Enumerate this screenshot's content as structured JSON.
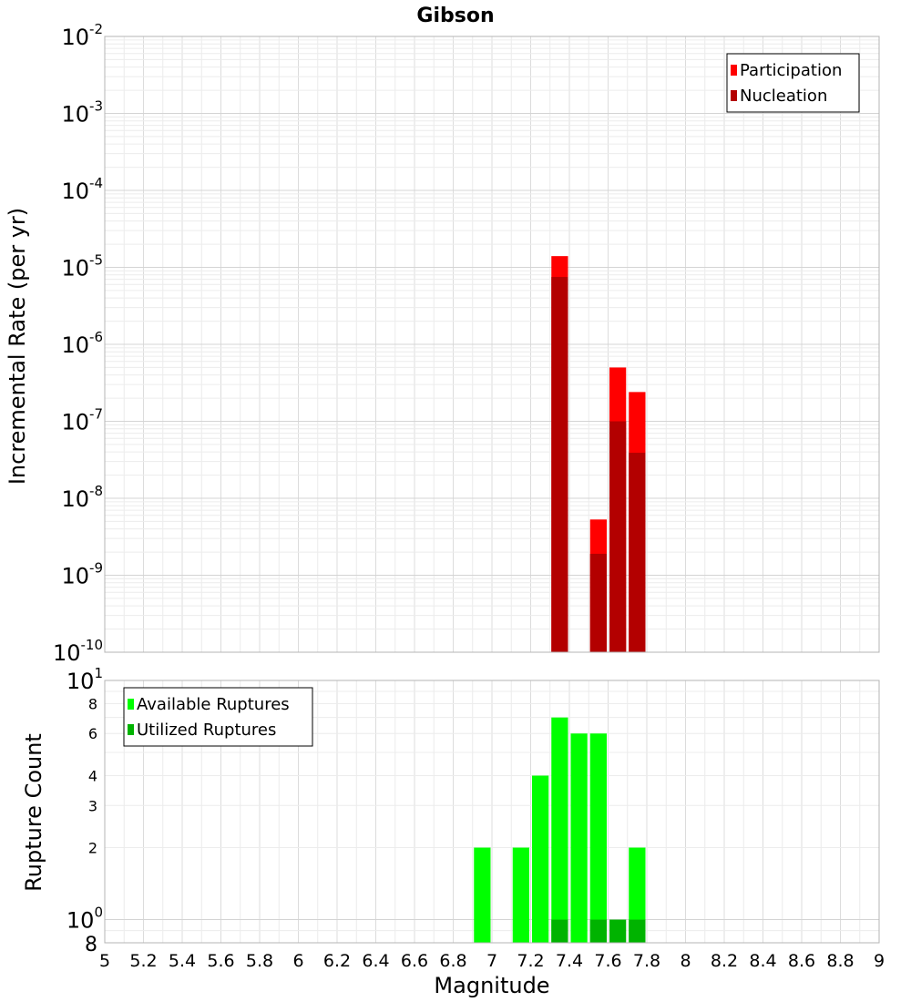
{
  "chart_data": [
    {
      "type": "bar",
      "title": "Gibson",
      "ylabel": "Incremental Rate (per yr)",
      "y_scale": "log",
      "ylim": [
        1e-10,
        0.01
      ],
      "y_ticks": [
        {
          "base": "10",
          "exp": "-2"
        },
        {
          "base": "10",
          "exp": "-3"
        },
        {
          "base": "10",
          "exp": "-4"
        },
        {
          "base": "10",
          "exp": "-5"
        },
        {
          "base": "10",
          "exp": "-6"
        },
        {
          "base": "10",
          "exp": "-7"
        },
        {
          "base": "10",
          "exp": "-8"
        },
        {
          "base": "10",
          "exp": "-9"
        },
        {
          "base": "10",
          "exp": "-10"
        }
      ],
      "xlim": [
        5,
        9
      ],
      "bin_width": 0.1,
      "legend_position": "top-right",
      "series": [
        {
          "name": "Participation",
          "color": "#ff0000",
          "x": [
            7.35,
            7.55,
            7.65,
            7.75
          ],
          "values": [
            1.4e-05,
            5.3e-09,
            5e-07,
            2.4e-07
          ]
        },
        {
          "name": "Nucleation",
          "color": "#b30000",
          "x": [
            7.35,
            7.55,
            7.65,
            7.75
          ],
          "values": [
            7.5e-06,
            1.9e-09,
            1e-07,
            3.9e-08
          ]
        }
      ]
    },
    {
      "type": "bar",
      "xlabel": "Magnitude",
      "ylabel": "Rupture Count",
      "y_scale": "log",
      "ylim": [
        0.8,
        10
      ],
      "y_ticks": [
        {
          "value": 10,
          "base": "10",
          "exp": "1"
        },
        {
          "value": 8,
          "label": "8"
        },
        {
          "value": 6,
          "label": "6"
        },
        {
          "value": 4,
          "label": "4"
        },
        {
          "value": 3,
          "label": "3"
        },
        {
          "value": 2,
          "label": "2"
        },
        {
          "value": 1,
          "base": "10",
          "exp": "0"
        },
        {
          "value": 0.8,
          "label": "8"
        }
      ],
      "xlim": [
        5,
        9
      ],
      "x_ticks": [
        "5",
        "5.2",
        "5.4",
        "5.6",
        "5.8",
        "6",
        "6.2",
        "6.4",
        "6.6",
        "6.8",
        "7",
        "7.2",
        "7.4",
        "7.6",
        "7.8",
        "8",
        "8.2",
        "8.4",
        "8.6",
        "8.8",
        "9"
      ],
      "bin_width": 0.1,
      "legend_position": "top-left",
      "series": [
        {
          "name": "Available Ruptures",
          "color": "#00ff00",
          "x": [
            6.95,
            7.15,
            7.25,
            7.35,
            7.45,
            7.55,
            7.75
          ],
          "values": [
            2,
            2,
            4,
            7,
            6,
            6,
            2
          ]
        },
        {
          "name": "Utilized Ruptures",
          "color": "#00b300",
          "x": [
            7.35,
            7.55,
            7.65,
            7.75
          ],
          "values": [
            1,
            1,
            1,
            1
          ]
        }
      ]
    }
  ]
}
